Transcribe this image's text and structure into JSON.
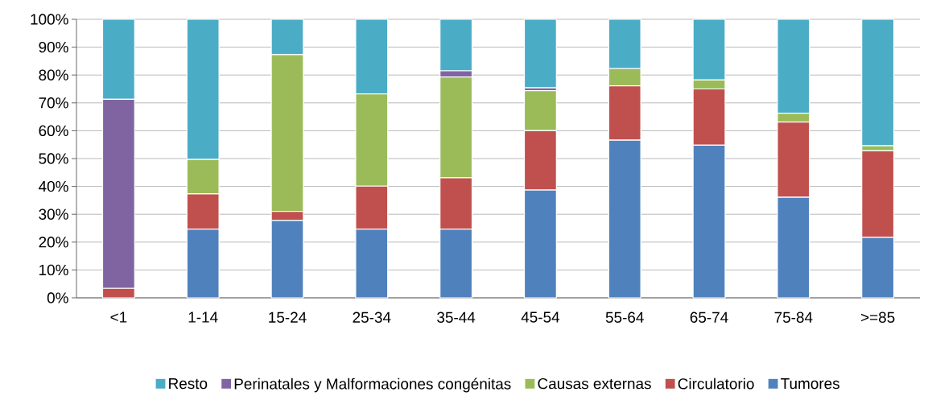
{
  "chart_data": {
    "type": "bar",
    "stacked": true,
    "grid": "y",
    "legend": "bottom",
    "categories": [
      "<1",
      "1-14",
      "15-24",
      "25-34",
      "35-44",
      "45-54",
      "55-64",
      "65-74",
      "75-84",
      ">=85"
    ],
    "ylim": [
      0,
      100
    ],
    "yticks": [
      {
        "value": 0,
        "label": "0%"
      },
      {
        "value": 10,
        "label": "10%"
      },
      {
        "value": 20,
        "label": "20%"
      },
      {
        "value": 30,
        "label": "30%"
      },
      {
        "value": 40,
        "label": "40%"
      },
      {
        "value": 50,
        "label": "50%"
      },
      {
        "value": 60,
        "label": "60%"
      },
      {
        "value": 70,
        "label": "70%"
      },
      {
        "value": 80,
        "label": "80%"
      },
      {
        "value": 90,
        "label": "90%"
      },
      {
        "value": 100,
        "label": "100%"
      }
    ],
    "series": [
      {
        "name": "Tumores",
        "color": "#4f81bd",
        "values": [
          0,
          24.7,
          27.8,
          24.7,
          24.7,
          38.7,
          56.6,
          54.8,
          36.1,
          21.7
        ]
      },
      {
        "name": "Circulatorio",
        "color": "#c0504d",
        "values": [
          3.4,
          12.6,
          3.2,
          15.4,
          18.4,
          21.3,
          19.5,
          20.2,
          27.0,
          31.1
        ]
      },
      {
        "name": "Causas externas",
        "color": "#9bbb59",
        "values": [
          0,
          12.4,
          56.3,
          33.1,
          36.2,
          14.4,
          6.2,
          3.2,
          3.2,
          1.8
        ]
      },
      {
        "name": "Perinatales y Malformaciones congénitas",
        "color": "#8064a2",
        "values": [
          67.9,
          0,
          0,
          0,
          2.2,
          1.0,
          0,
          0,
          0,
          0
        ]
      },
      {
        "name": "Resto",
        "color": "#4bacc6",
        "values": [
          28.7,
          50.3,
          12.7,
          26.8,
          18.5,
          24.6,
          17.7,
          21.8,
          33.7,
          45.4
        ]
      }
    ]
  }
}
